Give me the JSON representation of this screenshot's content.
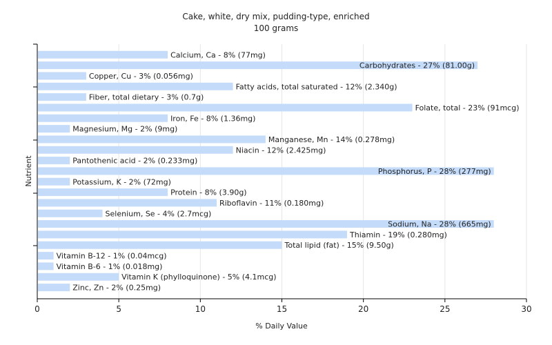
{
  "chart_data": {
    "type": "bar",
    "orientation": "horizontal",
    "title": "Cake, white, dry mix, pudding-type, enriched",
    "subtitle": "100 grams",
    "xlabel": "% Daily Value",
    "ylabel": "Nutrient",
    "xlim": [
      0,
      30
    ],
    "xticks": [
      0,
      5,
      10,
      15,
      20,
      25,
      30
    ],
    "grid": true,
    "bar_color": "#c4dcfa",
    "categories": [
      "Calcium, Ca",
      "Carbohydrates",
      "Copper, Cu",
      "Fatty acids, total saturated",
      "Fiber, total dietary",
      "Folate, total",
      "Iron, Fe",
      "Magnesium, Mg",
      "Manganese, Mn",
      "Niacin",
      "Pantothenic acid",
      "Phosphorus, P",
      "Potassium, K",
      "Protein",
      "Riboflavin",
      "Selenium, Se",
      "Sodium, Na",
      "Thiamin",
      "Total lipid (fat)",
      "Vitamin B-12",
      "Vitamin B-6",
      "Vitamin K (phylloquinone)",
      "Zinc, Zn"
    ],
    "values": [
      8,
      27,
      3,
      12,
      3,
      23,
      8,
      2,
      14,
      12,
      2,
      28,
      2,
      8,
      11,
      4,
      28,
      19,
      15,
      1,
      1,
      5,
      2
    ],
    "labels": [
      "Calcium, Ca - 8% (77mg)",
      "Carbohydrates - 27% (81.00g)",
      "Copper, Cu - 3% (0.056mg)",
      "Fatty acids, total saturated - 12% (2.340g)",
      "Fiber, total dietary - 3% (0.7g)",
      "Folate, total - 23% (91mcg)",
      "Iron, Fe - 8% (1.36mg)",
      "Magnesium, Mg - 2% (9mg)",
      "Manganese, Mn - 14% (0.278mg)",
      "Niacin - 12% (2.425mg)",
      "Pantothenic acid - 2% (0.233mg)",
      "Phosphorus, P - 28% (277mg)",
      "Potassium, K - 2% (72mg)",
      "Protein - 8% (3.90g)",
      "Riboflavin - 11% (0.180mg)",
      "Selenium, Se - 4% (2.7mcg)",
      "Sodium, Na - 28% (665mg)",
      "Thiamin - 19% (0.280mg)",
      "Total lipid (fat) - 15% (9.50g)",
      "Vitamin B-12 - 1% (0.04mcg)",
      "Vitamin B-6 - 1% (0.018mg)",
      "Vitamin K (phylloquinone) - 5% (4.1mcg)",
      "Zinc, Zn - 2% (0.25mg)"
    ]
  }
}
